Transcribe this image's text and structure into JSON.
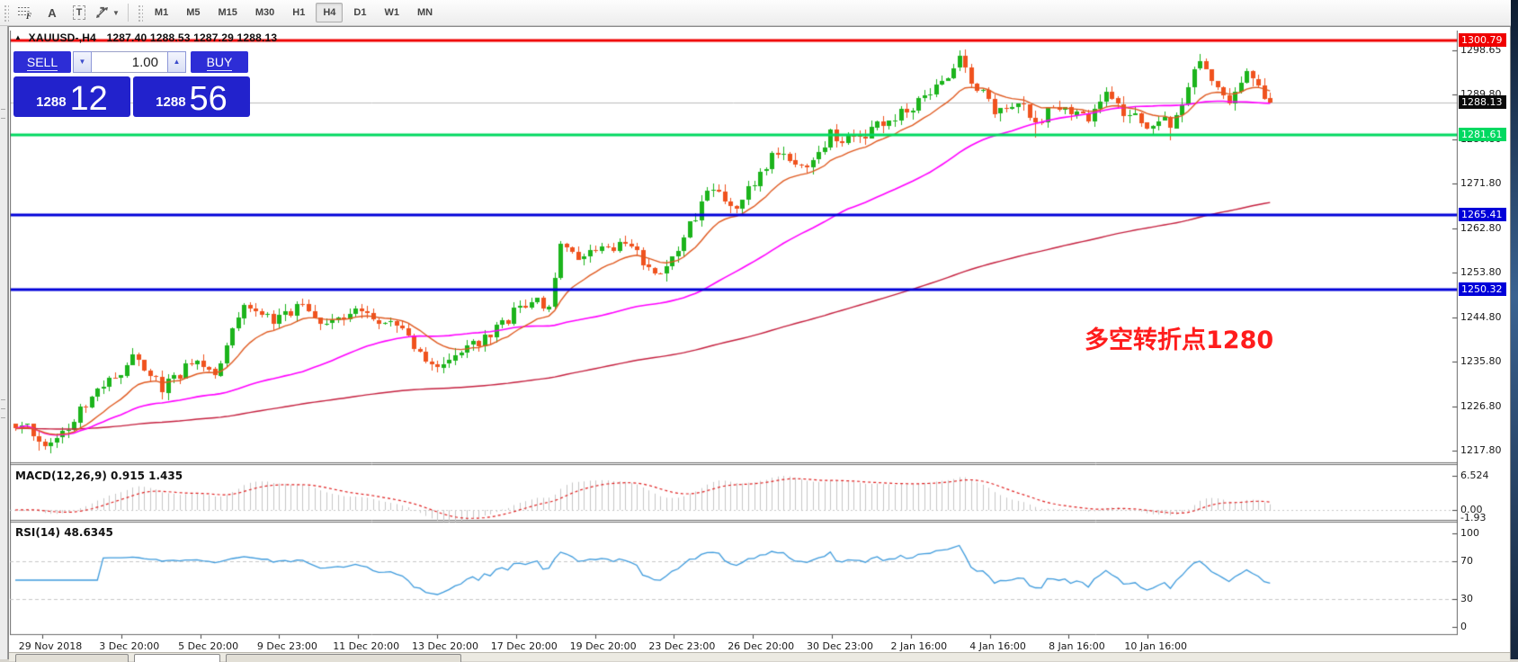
{
  "toolbar": {
    "tools": [
      {
        "name": "indicators",
        "glyph": "f"
      },
      {
        "name": "text-label",
        "glyph": "A"
      },
      {
        "name": "text-box",
        "glyph": "T"
      },
      {
        "name": "arrow-tools",
        "glyph": "arrows"
      }
    ],
    "timeframes": [
      "M1",
      "M5",
      "M15",
      "M30",
      "H1",
      "H4",
      "D1",
      "W1",
      "MN"
    ],
    "active_timeframe": "H4"
  },
  "chart_window": {
    "title_symbol": "XAUUSD-,H4",
    "title_ohlc": "1287.40 1288.53 1287.29 1288.13",
    "trade_panel": {
      "sell_label": "SELL",
      "buy_label": "BUY",
      "volume": "1.00",
      "sell_price_small": "1288",
      "sell_price_big": "12",
      "buy_price_small": "1288",
      "buy_price_big": "56"
    },
    "annotation": {
      "text": "多空转折点1280",
      "color": "#ff1c1c"
    }
  },
  "price_axis": {
    "ticks": [
      {
        "label": "1298.65",
        "price": 1298.65
      },
      {
        "label": "1289.80",
        "price": 1289.8
      },
      {
        "label": "1280.80",
        "price": 1280.8
      },
      {
        "label": "1271.80",
        "price": 1271.8
      },
      {
        "label": "1262.80",
        "price": 1262.8
      },
      {
        "label": "1253.80",
        "price": 1253.8
      },
      {
        "label": "1244.80",
        "price": 1244.8
      },
      {
        "label": "1235.80",
        "price": 1235.8
      },
      {
        "label": "1226.80",
        "price": 1226.8
      },
      {
        "label": "1217.80",
        "price": 1217.8
      }
    ],
    "badges": [
      {
        "label": "1300.79",
        "price": 1300.79,
        "bg": "#f00000"
      },
      {
        "label": "1288.13",
        "price": 1288.13,
        "bg": "#0a0a0a"
      },
      {
        "label": "1281.61",
        "price": 1281.61,
        "bg": "#00d961"
      },
      {
        "label": "1265.41",
        "price": 1265.41,
        "bg": "#0000d9"
      },
      {
        "label": "1250.32",
        "price": 1250.32,
        "bg": "#0000d9"
      }
    ]
  },
  "macd_panel": {
    "title": "MACD(12,26,9) 0.915 1.435",
    "max_label": "6.524",
    "zero_label": "0.00",
    "min_label": "-1.93"
  },
  "rsi_panel": {
    "title": "RSI(14) 48.6345",
    "levels": [
      {
        "label": "100",
        "value": 100
      },
      {
        "label": "70",
        "value": 70
      },
      {
        "label": "30",
        "value": 30
      },
      {
        "label": "0",
        "value": 0
      }
    ]
  },
  "time_axis": {
    "labels": [
      "29 Nov 2018",
      "3 Dec 20:00",
      "5 Dec 20:00",
      "9 Dec 23:00",
      "11 Dec 20:00",
      "13 Dec 20:00",
      "17 Dec 20:00",
      "19 Dec 20:00",
      "23 Dec 23:00",
      "26 Dec 20:00",
      "30 Dec 23:00",
      "2 Jan 16:00",
      "4 Jan 16:00",
      "8 Jan 16:00",
      "10 Jan 16:00"
    ]
  },
  "chart_data": {
    "type": "candlestick",
    "symbol": "XAUUSD",
    "timeframe": "H4",
    "ylim": [
      1214,
      1303
    ],
    "candle_count": 215,
    "last_close": 1288.13,
    "close_path": [
      [
        0,
        1222.5
      ],
      [
        2,
        1224.2
      ],
      [
        4,
        1218.6
      ],
      [
        8,
        1221.0
      ],
      [
        12,
        1227.0
      ],
      [
        16,
        1232.5
      ],
      [
        20,
        1236.0
      ],
      [
        25,
        1230.5
      ],
      [
        28,
        1233.0
      ],
      [
        31,
        1237.0
      ],
      [
        34,
        1233.5
      ],
      [
        39,
        1247.5
      ],
      [
        44,
        1243.5
      ],
      [
        49,
        1247.0
      ],
      [
        52,
        1242.5
      ],
      [
        56,
        1245.0
      ],
      [
        59,
        1245.5
      ],
      [
        65,
        1244.0
      ],
      [
        70,
        1236.5
      ],
      [
        72,
        1233.5
      ],
      [
        78,
        1239.0
      ],
      [
        82,
        1242.5
      ],
      [
        86,
        1246.5
      ],
      [
        91,
        1248.0
      ],
      [
        93,
        1259.0
      ],
      [
        96,
        1256.0
      ],
      [
        100,
        1260.0
      ],
      [
        105,
        1258.5
      ],
      [
        110,
        1253.5
      ],
      [
        114,
        1261.0
      ],
      [
        119,
        1271.5
      ],
      [
        123,
        1266.5
      ],
      [
        126,
        1272.5
      ],
      [
        130,
        1278.5
      ],
      [
        135,
        1274.0
      ],
      [
        139,
        1281.5
      ],
      [
        144,
        1280.5
      ],
      [
        149,
        1285.0
      ],
      [
        154,
        1288.5
      ],
      [
        158,
        1293.0
      ],
      [
        161,
        1296.5
      ],
      [
        164,
        1291.5
      ],
      [
        167,
        1286.5
      ],
      [
        171,
        1289.0
      ],
      [
        174,
        1284.5
      ],
      [
        178,
        1287.5
      ],
      [
        183,
        1285.5
      ],
      [
        186,
        1290.0
      ],
      [
        189,
        1286.5
      ],
      [
        193,
        1283.5
      ],
      [
        196,
        1284.0
      ],
      [
        197,
        1281.8
      ],
      [
        199,
        1289.0
      ],
      [
        202,
        1296.0
      ],
      [
        205,
        1291.0
      ],
      [
        207,
        1288.5
      ],
      [
        210,
        1294.0
      ],
      [
        212,
        1292.0
      ],
      [
        213,
        1289.5
      ],
      [
        214,
        1288.13
      ]
    ],
    "extremes": {
      "4": {
        "low": 1217.8
      },
      "161": {
        "high": 1298.65
      },
      "174": {
        "low": 1281.0
      },
      "197": {
        "low": 1280.6
      }
    },
    "levels": [
      {
        "price": 1288.13,
        "color": "#bdbdbd",
        "width": 1,
        "role": "bid-line"
      },
      {
        "price": 1300.79,
        "color": "#f00000",
        "width": 3,
        "role": "resistance"
      },
      {
        "price": 1281.61,
        "color": "#00d961",
        "width": 3,
        "role": "pivot"
      },
      {
        "price": 1265.41,
        "color": "#0000d9",
        "width": 3,
        "role": "support"
      },
      {
        "price": 1250.32,
        "color": "#0000d9",
        "width": 3,
        "role": "support"
      }
    ],
    "indicators": {
      "ma_fast": {
        "period": 13,
        "color": "#e05a20"
      },
      "ma_mid": {
        "period": 50,
        "color": "#ff00ff"
      },
      "ma_slow": {
        "period": 200,
        "color": "#c5203f"
      },
      "macd": {
        "fast": 12,
        "slow": 26,
        "signal": 9,
        "value": 0.915,
        "signal_value": 1.435,
        "max": 6.524,
        "min": -1.93,
        "hist_color": "#c6c6c6",
        "signal_color": "#e02020"
      },
      "rsi": {
        "period": 14,
        "value": 48.6345,
        "color": "#3e9bdd",
        "levels": [
          70,
          30
        ]
      }
    },
    "colors": {
      "up": "#1cb41c",
      "down": "#f0521e"
    }
  }
}
